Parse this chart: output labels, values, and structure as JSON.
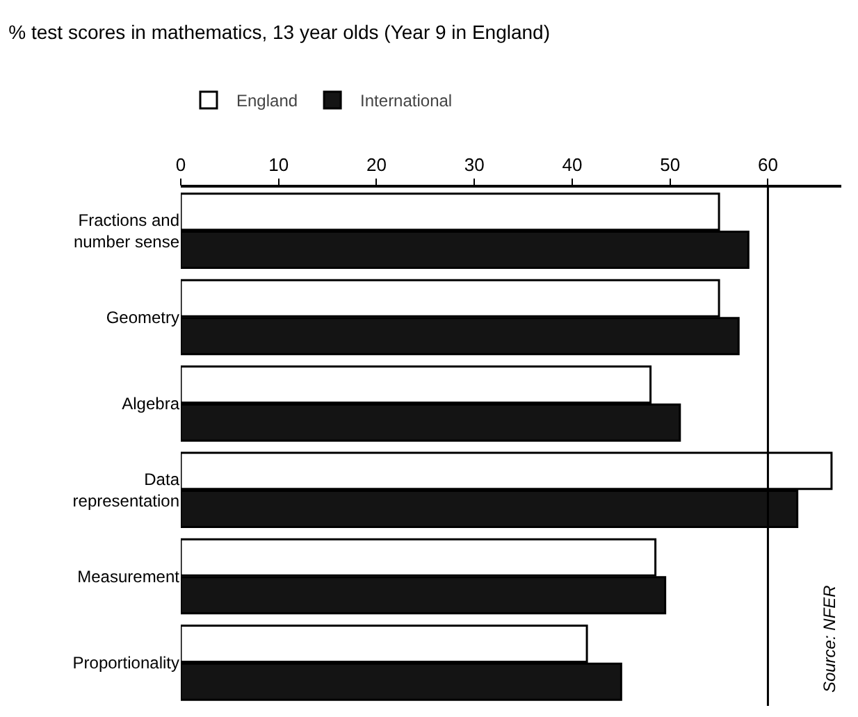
{
  "chart_data": {
    "type": "bar",
    "orientation": "horizontal",
    "title": "% test scores in mathematics, 13 year olds (Year 9 in England)",
    "categories": [
      "Fractions and\nnumber sense",
      "Geometry",
      "Algebra",
      "Data\nrepresentation",
      "Measurement",
      "Proportionality"
    ],
    "series": [
      {
        "name": "England",
        "color": "#ffffff",
        "values": [
          55,
          55,
          48,
          66.5,
          48.5,
          41.5
        ]
      },
      {
        "name": "International",
        "color": "#141414",
        "values": [
          58,
          57,
          51,
          63,
          49.5,
          45
        ]
      }
    ],
    "xlim": [
      0,
      67.5
    ],
    "xticks": [
      0,
      10,
      20,
      30,
      40,
      50,
      60
    ],
    "ref_lines": [
      {
        "axis": "x",
        "value": 60,
        "color": "#000000"
      }
    ],
    "annotations": [
      "Source: NFER"
    ],
    "legend": "top left",
    "grid": false
  }
}
